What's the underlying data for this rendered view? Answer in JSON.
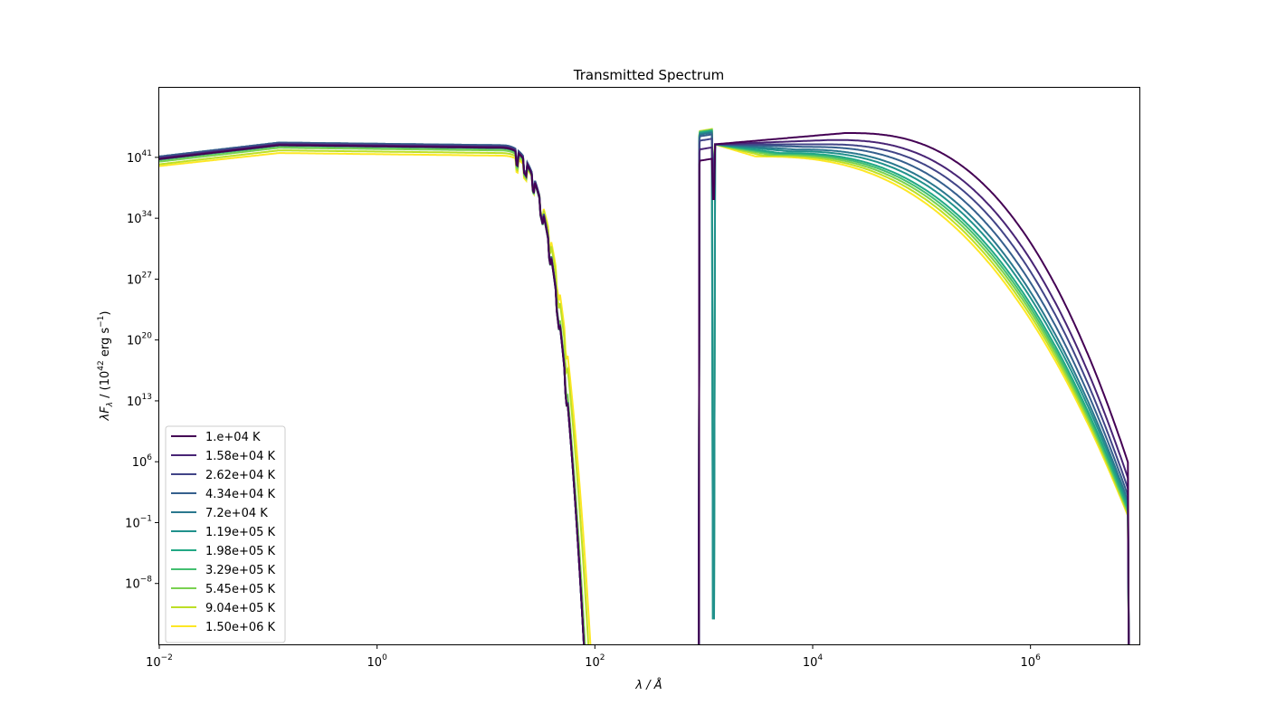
{
  "chart_data": {
    "type": "line",
    "title": "Transmitted Spectrum",
    "xlabel": "λ / Å",
    "ylabel": "λF_λ / (10^42 erg s^-1)",
    "x_scale": "log",
    "y_scale": "log",
    "xlim": [
      0.01,
      10000000
    ],
    "ylim": [
      1e-15,
      1e+49
    ],
    "x_ticks": [
      {
        "value": 0.01,
        "base": "10",
        "exp": "−2"
      },
      {
        "value": 1,
        "base": "10",
        "exp": "0"
      },
      {
        "value": 100,
        "base": "10",
        "exp": "2"
      },
      {
        "value": 10000,
        "base": "10",
        "exp": "4"
      },
      {
        "value": 1000000,
        "base": "10",
        "exp": "6"
      }
    ],
    "y_ticks": [
      {
        "value": 1e-08,
        "base": "10",
        "exp": "−8"
      },
      {
        "value": 0.1,
        "base": "10",
        "exp": "−1"
      },
      {
        "value": 1000000.0,
        "base": "10",
        "exp": "6"
      },
      {
        "value": 10000000000000.0,
        "base": "10",
        "exp": "13"
      },
      {
        "value": 1e+20,
        "base": "10",
        "exp": "20"
      },
      {
        "value": 1e+27,
        "base": "10",
        "exp": "27"
      },
      {
        "value": 1e+34,
        "base": "10",
        "exp": "34"
      },
      {
        "value": 1e+41,
        "base": "10",
        "exp": "41"
      }
    ],
    "grid": false,
    "legend_position": "lower-left",
    "series": [
      {
        "name": "1.e+04 K",
        "color": "#440154",
        "peak_log": 43.8,
        "peak_wl": 20000,
        "tail_log": 5.6,
        "xi_log": 40.8,
        "soft_log": 42.4,
        "cut_wl": 80,
        "uv_low": 38.2
      },
      {
        "name": "1.58e+04 K",
        "color": "#482475",
        "peak_log": 43.0,
        "peak_wl": 15000,
        "tail_log": 3.8,
        "xi_log": 40.9,
        "soft_log": 42.5,
        "cut_wl": 80,
        "uv_low": 39.5
      },
      {
        "name": "2.62e+04 K",
        "color": "#414487",
        "peak_log": 42.5,
        "peak_wl": 12000,
        "tail_log": 2.6,
        "xi_log": 41.0,
        "soft_log": 42.6,
        "cut_wl": 80,
        "uv_low": 40.5
      },
      {
        "name": "4.34e+04 K",
        "color": "#355f8d",
        "peak_log": 42.2,
        "peak_wl": 9000,
        "tail_log": 1.8,
        "xi_log": 41.1,
        "soft_log": 42.7,
        "cut_wl": 80,
        "uv_low": 41.0
      },
      {
        "name": "7.2e+04 K",
        "color": "#2a788e",
        "peak_log": 41.9,
        "peak_wl": 7000,
        "tail_log": 1.2,
        "xi_log": 41.1,
        "soft_log": 42.7,
        "cut_wl": 80,
        "uv_low": 41.2
      },
      {
        "name": "1.19e+05 K",
        "color": "#21918c",
        "peak_log": 41.7,
        "peak_wl": 6000,
        "tail_log": 0.8,
        "xi_log": 41.0,
        "soft_log": 42.6,
        "cut_wl": 80,
        "uv_low": 41.3
      },
      {
        "name": "1.98e+05 K",
        "color": "#22a884",
        "peak_log": 41.5,
        "peak_wl": 5000,
        "tail_log": 0.4,
        "xi_log": 40.9,
        "soft_log": 42.5,
        "cut_wl": 80,
        "uv_low": 41.4
      },
      {
        "name": "3.29e+05 K",
        "color": "#44bf70",
        "peak_log": 41.4,
        "peak_wl": 4500,
        "tail_log": 0.1,
        "xi_log": 40.7,
        "soft_log": 42.3,
        "cut_wl": 80,
        "uv_low": 41.5
      },
      {
        "name": "5.45e+05 K",
        "color": "#7ad151",
        "peak_log": 41.3,
        "peak_wl": 4000,
        "tail_log": -0.1,
        "xi_log": 40.5,
        "soft_log": 42.1,
        "cut_wl": 82,
        "uv_low": 41.5
      },
      {
        "name": "9.04e+05 K",
        "color": "#bddf26",
        "peak_log": 41.2,
        "peak_wl": 3500,
        "tail_log": -0.3,
        "xi_log": 40.2,
        "soft_log": 41.8,
        "cut_wl": 88,
        "uv_low": 41.6
      },
      {
        "name": "1.50e+06 K",
        "color": "#fde725",
        "peak_log": 41.1,
        "peak_wl": 3000,
        "tail_log": -0.5,
        "xi_log": 40.0,
        "soft_log": 41.5,
        "cut_wl": 92,
        "uv_low": 41.6
      }
    ]
  }
}
